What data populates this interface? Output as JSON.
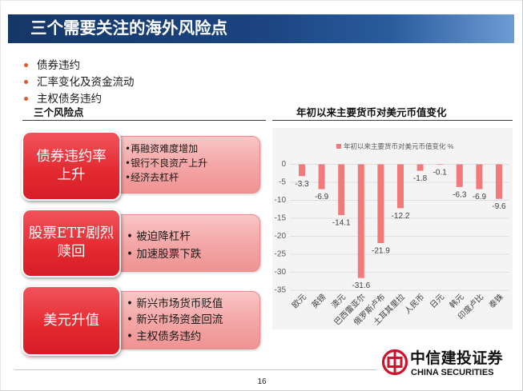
{
  "slide": {
    "title": "三个需要关注的海外风险点",
    "page_number": "16"
  },
  "colors": {
    "header_dark": "#153767",
    "header_light": "#6e9bd3",
    "risk_label_red": "#e4282f",
    "risk_detail_pink": "#f4a7a7",
    "bullet_dot": "#dc5a2e",
    "bar_fill": "#f37a7a",
    "logo_red": "#d0112b"
  },
  "bullets": [
    "债券违约",
    "汇率变化及资金流动",
    "主权债务违约"
  ],
  "risk_section": {
    "heading": "三个风险点",
    "items": [
      {
        "label_lines": [
          "债券违约率",
          "上升"
        ],
        "details": [
          "•再融资难度增加",
          "•银行不良资产上升",
          "•经济去杠杆"
        ]
      },
      {
        "label_lines": [
          "股票ETF剧烈",
          "赎回"
        ],
        "details": [
          "• 被迫降杠杆",
          "• 加速股票下跌"
        ]
      },
      {
        "label_lines": [
          "美元升值"
        ],
        "details": [
          "• 新兴市场货币贬值",
          "• 新兴市场资金回流",
          "• 主权债务违约"
        ]
      }
    ]
  },
  "chart_data": {
    "type": "bar",
    "title": "年初以来主要货币对美元币值变化",
    "xlabel": "",
    "ylabel": "",
    "categories": [
      "欧元",
      "英镑",
      "澳元",
      "巴西雷亚尔",
      "俄罗斯卢布",
      "土耳其里拉",
      "人民币",
      "日元",
      "韩元",
      "印度卢比",
      "泰铢"
    ],
    "series": [
      {
        "name": "年初以来主要货币对美元币值变化 %",
        "values": [
          -3.3,
          -6.9,
          -14.1,
          -31.6,
          -21.9,
          -12.2,
          -1.8,
          -0.1,
          -6.3,
          -6.9,
          -9.6
        ],
        "color": "#f37a7a"
      }
    ],
    "ylim": [
      -35,
      0
    ],
    "yticks": [
      0,
      -5,
      -10,
      -15,
      -20,
      -25,
      -30,
      -35
    ],
    "data_labels": true,
    "grid": true,
    "legend_position": "top"
  },
  "logo": {
    "name_cn": "中信建投证券",
    "name_en": "CHINA SECURITIES",
    "mark_icon": "citic-logo-icon"
  }
}
